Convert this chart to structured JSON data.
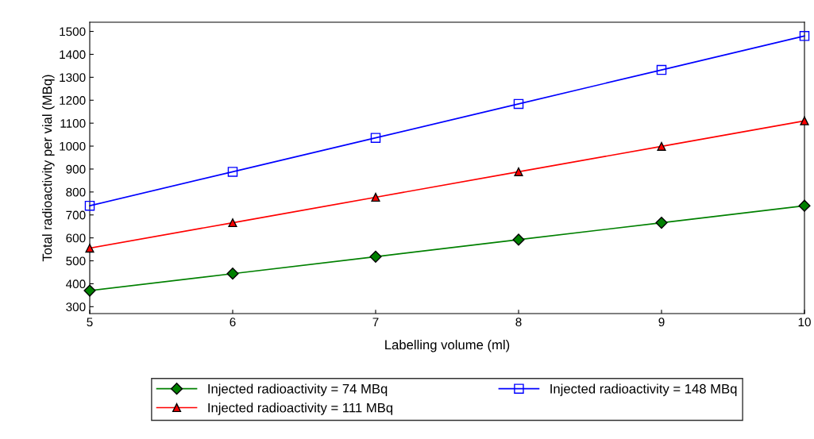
{
  "chart_data": {
    "type": "line",
    "xlabel": "Labelling volume (ml)",
    "ylabel": "Total radioactivity per vial (MBq)",
    "x": [
      5,
      6,
      7,
      8,
      9,
      10
    ],
    "series": [
      {
        "name": "Injected radioactivity = 74 MBq",
        "color": "#008000",
        "marker": "diamond",
        "values": [
          370,
          444,
          518,
          592,
          666,
          740
        ]
      },
      {
        "name": "Injected radioactivity = 111 MBq",
        "color": "#ff0000",
        "marker": "triangle",
        "values": [
          555,
          666,
          777,
          888,
          999,
          1110
        ]
      },
      {
        "name": "Injected radioactivity = 148 MBq",
        "color": "#0000ff",
        "marker": "square",
        "values": [
          740,
          888,
          1036,
          1184,
          1332,
          1480
        ]
      }
    ],
    "xlim": [
      5,
      10
    ],
    "xticks": [
      5,
      6,
      7,
      8,
      9,
      10
    ],
    "ylim": [
      270,
      1540
    ],
    "yticks": [
      300,
      400,
      500,
      600,
      700,
      800,
      900,
      1000,
      1100,
      1200,
      1300,
      1400,
      1500
    ],
    "grid": false,
    "legend": "bottom",
    "line_style": "solid"
  }
}
